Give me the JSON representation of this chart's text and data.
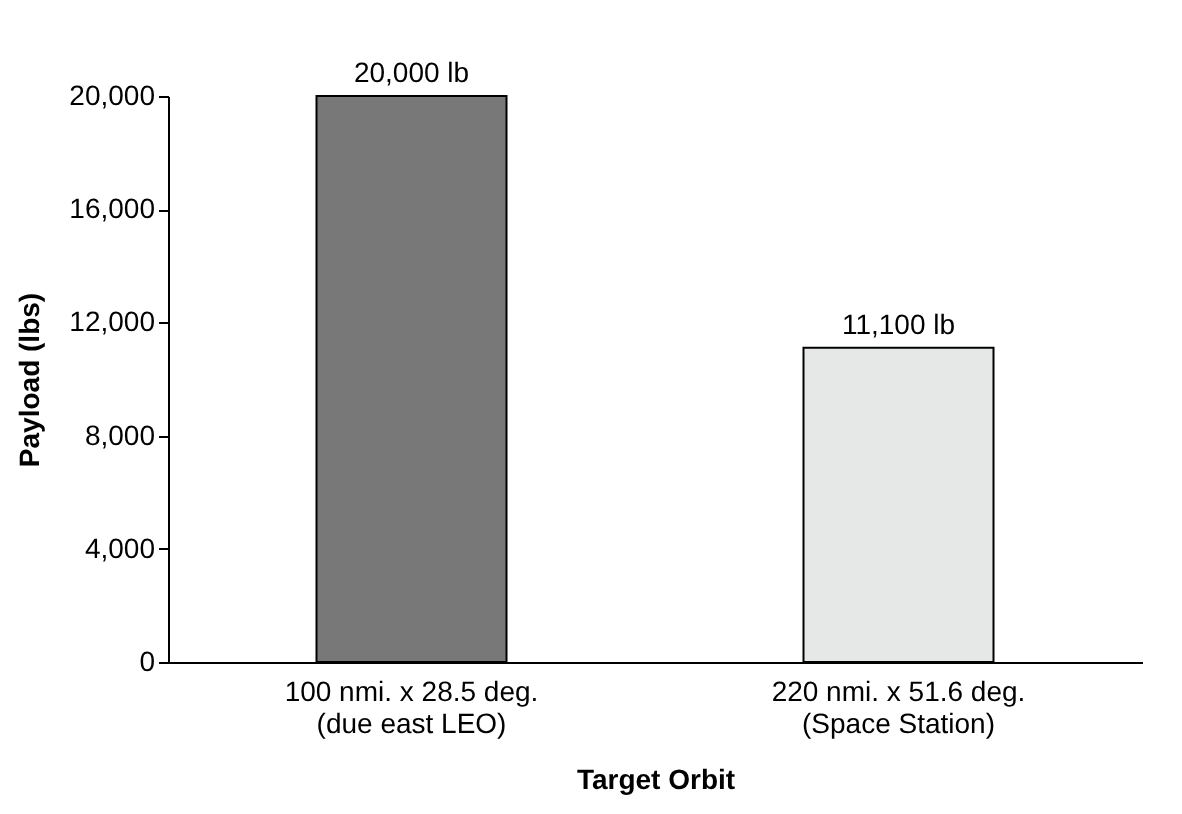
{
  "chart_data": {
    "type": "bar",
    "xlabel": "Target Orbit",
    "ylabel": "Payload (lbs)",
    "categories": [
      "100 nmi. x 28.5 deg.\n(due east LEO)",
      "220 nmi. x 51.6 deg.\n(Space Station)"
    ],
    "values": [
      20000,
      11100
    ],
    "colors": [
      "#787878",
      "#e6e8e8"
    ],
    "value_labels": [
      "20,000 lb",
      "11,100 lb"
    ],
    "ylim": [
      0,
      20000
    ],
    "yticks": [
      {
        "value": 0,
        "label": "0"
      },
      {
        "value": 4000,
        "label": "4,000"
      },
      {
        "value": 8000,
        "label": "8,000"
      },
      {
        "value": 12000,
        "label": "12,000"
      },
      {
        "value": 16000,
        "label": "16,000"
      },
      {
        "value": 20000,
        "label": "20,000"
      }
    ],
    "grid": false,
    "legend": false
  }
}
